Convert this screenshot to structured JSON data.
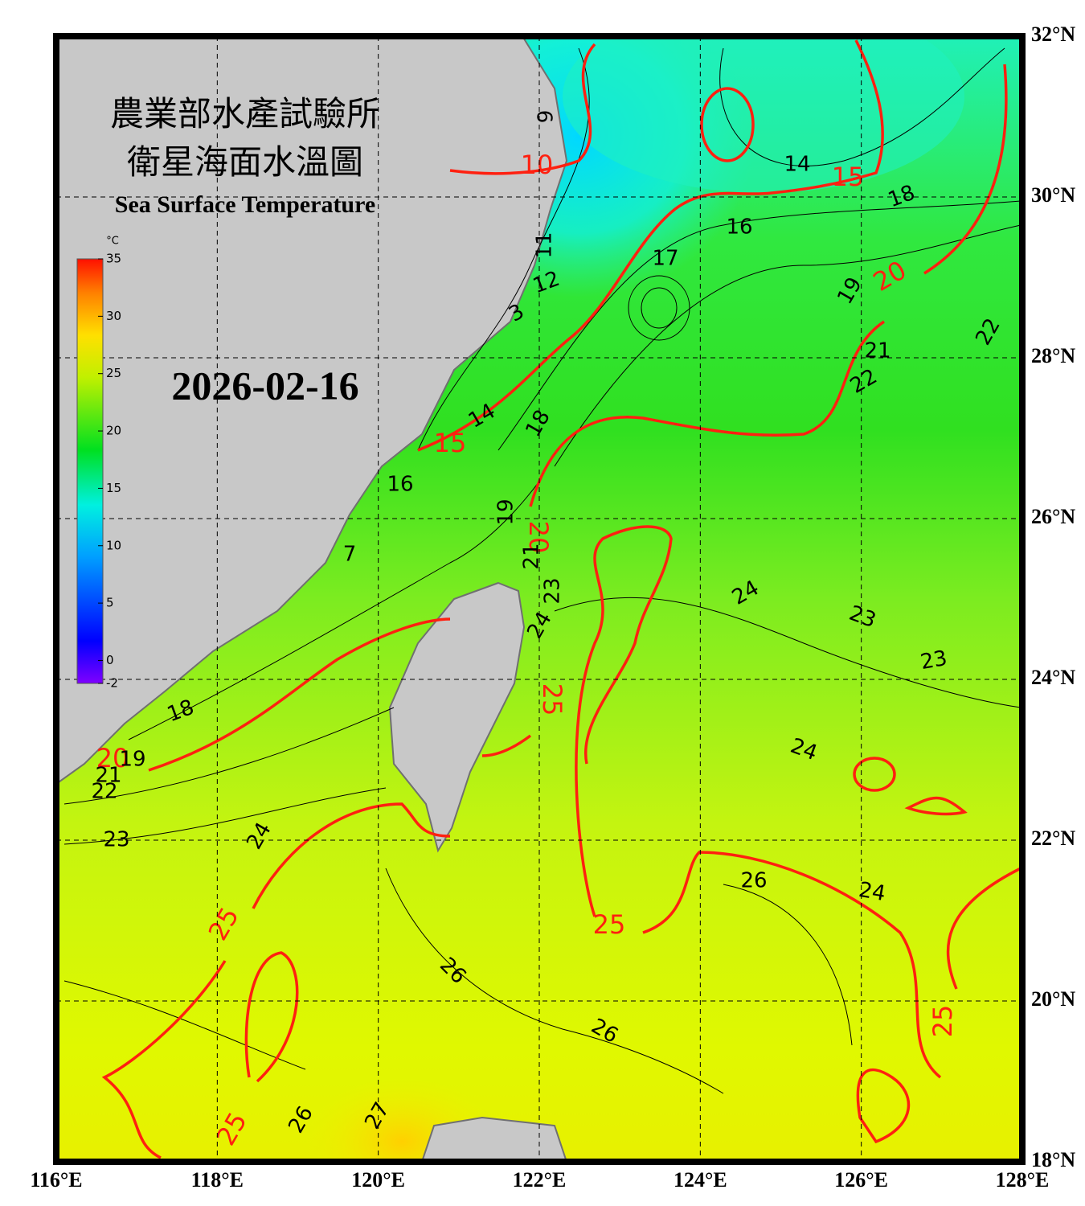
{
  "header": {
    "title_zh": "農業部水產試驗所",
    "subtitle_zh": "衛星海面水溫圖",
    "title_en": "Sea Surface Temperature",
    "date": "2026-02-16"
  },
  "colorbar": {
    "unit": "°C",
    "range": [
      -2,
      35
    ],
    "ticks": [
      -2,
      0,
      5,
      10,
      15,
      20,
      25,
      30,
      35
    ]
  },
  "map": {
    "lon_range": [
      116,
      128
    ],
    "lat_range": [
      18,
      32
    ],
    "lon_ticks": [
      {
        "value": 116,
        "label": "116°E"
      },
      {
        "value": 118,
        "label": "118°E"
      },
      {
        "value": 120,
        "label": "120°E"
      },
      {
        "value": 122,
        "label": "122°E"
      },
      {
        "value": 124,
        "label": "124°E"
      },
      {
        "value": 126,
        "label": "126°E"
      },
      {
        "value": 128,
        "label": "128°E"
      }
    ],
    "lat_ticks": [
      {
        "value": 18,
        "label": "18°N"
      },
      {
        "value": 20,
        "label": "20°N"
      },
      {
        "value": 22,
        "label": "22°N"
      },
      {
        "value": 24,
        "label": "24°N"
      },
      {
        "value": 26,
        "label": "26°N"
      },
      {
        "value": 28,
        "label": "28°N"
      },
      {
        "value": 30,
        "label": "30°N"
      },
      {
        "value": 32,
        "label": "32°N"
      }
    ],
    "major_contour_labels": [
      "10",
      "15",
      "20",
      "15",
      "20",
      "20",
      "25",
      "25",
      "25",
      "25",
      "25"
    ],
    "minor_contour_labels": [
      "9",
      "14",
      "18",
      "16",
      "17",
      "11",
      "12",
      "3",
      "19",
      "21",
      "22",
      "22",
      "14",
      "18",
      "16",
      "19",
      "7",
      "21",
      "23",
      "24",
      "23",
      "24",
      "23",
      "18",
      "19",
      "24",
      "21",
      "22",
      "23",
      "24",
      "26",
      "24",
      "26",
      "26",
      "26",
      "27"
    ]
  }
}
